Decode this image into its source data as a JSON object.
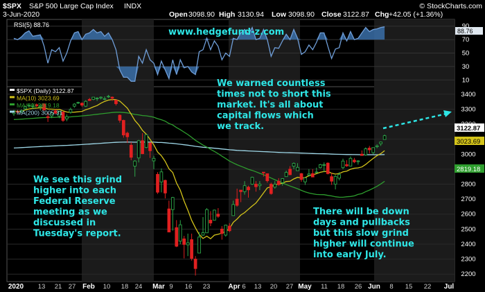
{
  "header": {
    "symbol": "$SPX",
    "name": "S&P 500 Large Cap Index",
    "exchange": "INDX",
    "date": "3-Jun-2020",
    "open_label": "Open",
    "open": "3098.90",
    "high_label": "High",
    "high": "3130.94",
    "low_label": "Low",
    "low": "3098.90",
    "close_label": "Close",
    "close": "3122.87",
    "chg_label": "Chg",
    "chg": "+42.05 (+1.36%)",
    "brand": "© StockCharts.com"
  },
  "watermark": "www.hedgefund-z.com",
  "annotations": [
    [
      "We warned countless",
      "times not to short this",
      "market. It's all about",
      "capital flows which",
      "we track."
    ],
    [
      "We see this grind",
      "higher into each",
      "Federal Reserve",
      "meeting as we",
      "discussed in",
      "Tuesday's report."
    ],
    [
      "There will be down",
      "days and pullbacks",
      "but this slow grind",
      "higher will continue",
      "into early July."
    ]
  ],
  "colors": {
    "background": "#000000",
    "up_candle": "#2ea84a",
    "down_candle": "#e02020",
    "ma10": "#d4c41a",
    "ma50": "#2e9e2e",
    "ma200": "#9fd8e8",
    "rsi_line": "#6f9ed8",
    "rsi_fill": "#3a6ea8",
    "annotation": "#2ee6e6"
  },
  "rsi_panel": {
    "label": "RSI(5) 88.76",
    "value_badge": "88.76",
    "ticks": [
      "90",
      "70",
      "50",
      "30",
      "10"
    ]
  },
  "price_panel": {
    "legend": [
      {
        "text": "$SPX (Daily) 3122.87",
        "color": "#ffffff"
      },
      {
        "text": "MA(10) 3023.69",
        "color": "#d4c41a"
      },
      {
        "text": "MA(50) 2819.18",
        "color": "#2e9e2e"
      },
      {
        "text": "MA(200) 3005.31",
        "color": "#9fd8e8"
      }
    ],
    "badges": {
      "close": "3122.87",
      "ma10": "3023.69",
      "ma50": "2819.18"
    },
    "y_ticks": [
      "3400",
      "3300",
      "3200",
      "3100",
      "3000",
      "2900",
      "2800",
      "2700",
      "2600",
      "2500",
      "2400",
      "2300",
      "2200"
    ]
  },
  "x_axis": {
    "labels": [
      {
        "text": "2020",
        "bold": true
      },
      {
        "text": "13"
      },
      {
        "text": "21"
      },
      {
        "text": "27"
      },
      {
        "text": "Feb",
        "bold": true
      },
      {
        "text": "10"
      },
      {
        "text": "18"
      },
      {
        "text": "24"
      },
      {
        "text": "Mar",
        "bold": true
      },
      {
        "text": "9"
      },
      {
        "text": "16"
      },
      {
        "text": "23"
      },
      {
        "text": "Apr",
        "bold": true
      },
      {
        "text": "6"
      },
      {
        "text": "13"
      },
      {
        "text": "20"
      },
      {
        "text": "27"
      },
      {
        "text": "May",
        "bold": true
      },
      {
        "text": "11"
      },
      {
        "text": "18"
      },
      {
        "text": "26"
      },
      {
        "text": "Jun",
        "bold": true
      },
      {
        "text": "8"
      },
      {
        "text": "15"
      },
      {
        "text": "22"
      },
      {
        "text": "Jul",
        "bold": true
      }
    ]
  },
  "chart_data": {
    "type": "candlestick",
    "title": "$SPX S&P 500 Large Cap Index INDX",
    "ylim": [
      2150,
      3450
    ],
    "rsi_ylim": [
      0,
      100
    ],
    "dates": [
      "Jan 13",
      "Jan 14",
      "Jan 15",
      "Jan 16",
      "Jan 17",
      "Jan 21",
      "Jan 22",
      "Jan 23",
      "Jan 24",
      "Jan 27",
      "Jan 28",
      "Jan 29",
      "Jan 30",
      "Jan 31",
      "Feb 3",
      "Feb 4",
      "Feb 5",
      "Feb 6",
      "Feb 7",
      "Feb 10",
      "Feb 11",
      "Feb 12",
      "Feb 13",
      "Feb 14",
      "Feb 18",
      "Feb 19",
      "Feb 20",
      "Feb 21",
      "Feb 24",
      "Feb 25",
      "Feb 26",
      "Feb 27",
      "Feb 28",
      "Mar 2",
      "Mar 3",
      "Mar 4",
      "Mar 5",
      "Mar 6",
      "Mar 9",
      "Mar 10",
      "Mar 11",
      "Mar 12",
      "Mar 13",
      "Mar 16",
      "Mar 17",
      "Mar 18",
      "Mar 19",
      "Mar 20",
      "Mar 23",
      "Mar 24",
      "Mar 25",
      "Mar 26",
      "Mar 27",
      "Mar 30",
      "Mar 31",
      "Apr 1",
      "Apr 2",
      "Apr 3",
      "Apr 6",
      "Apr 7",
      "Apr 8",
      "Apr 9",
      "Apr 13",
      "Apr 14",
      "Apr 15",
      "Apr 16",
      "Apr 17",
      "Apr 20",
      "Apr 21",
      "Apr 22",
      "Apr 23",
      "Apr 24",
      "Apr 27",
      "Apr 28",
      "Apr 29",
      "Apr 30",
      "May 1",
      "May 4",
      "May 5",
      "May 6",
      "May 7",
      "May 8",
      "May 11",
      "May 12",
      "May 13",
      "May 14",
      "May 15",
      "May 18",
      "May 19",
      "May 20",
      "May 21",
      "May 22",
      "May 26",
      "May 27",
      "May 28",
      "May 29",
      "Jun 1",
      "Jun 2",
      "Jun 3"
    ],
    "open": [
      3270,
      3285,
      3282,
      3302,
      3322,
      3320,
      3330,
      3318,
      3335,
      3250,
      3255,
      3290,
      3255,
      3280,
      3235,
      3280,
      3320,
      3345,
      3340,
      3320,
      3365,
      3365,
      3370,
      3375,
      3370,
      3385,
      3380,
      3360,
      3260,
      3225,
      3140,
      3060,
      2920,
      2975,
      3090,
      3045,
      3075,
      2955,
      2865,
      2815,
      2825,
      2635,
      2630,
      2510,
      2420,
      2435,
      2395,
      2430,
      2300,
      2340,
      2460,
      2475,
      2560,
      2560,
      2600,
      2500,
      2460,
      2520,
      2590,
      2700,
      2760,
      2750,
      2780,
      2800,
      2800,
      2790,
      2880,
      2870,
      2800,
      2780,
      2820,
      2810,
      2850,
      2900,
      2920,
      2890,
      2870,
      2815,
      2860,
      2870,
      2880,
      2910,
      2930,
      2940,
      2850,
      2800,
      2840,
      2910,
      2930,
      2920,
      2960,
      2950,
      3000,
      2995,
      3040,
      3010,
      3050,
      3070,
      3098
    ],
    "high": [
      3295,
      3295,
      3300,
      3320,
      3330,
      3340,
      3338,
      3335,
      3340,
      3275,
      3285,
      3300,
      3290,
      3285,
      3265,
      3310,
      3340,
      3350,
      3345,
      3360,
      3375,
      3380,
      3380,
      3385,
      3385,
      3395,
      3385,
      3365,
      3265,
      3230,
      3150,
      3080,
      2960,
      3095,
      3140,
      3130,
      3080,
      2990,
      2880,
      2905,
      2830,
      2690,
      2715,
      2560,
      2560,
      2455,
      2470,
      2470,
      2320,
      2480,
      2580,
      2640,
      2620,
      2630,
      2640,
      2520,
      2530,
      2540,
      2690,
      2770,
      2760,
      2820,
      2790,
      2850,
      2820,
      2820,
      2880,
      2870,
      2810,
      2820,
      2840,
      2840,
      2890,
      2920,
      2945,
      2940,
      2875,
      2845,
      2900,
      2900,
      2910,
      2935,
      2945,
      2945,
      2875,
      2860,
      2880,
      2970,
      2960,
      2985,
      2975,
      2960,
      3025,
      3045,
      3055,
      3045,
      3065,
      3085,
      3131
    ],
    "low": [
      3255,
      3270,
      3275,
      3295,
      3315,
      3300,
      3315,
      3290,
      3290,
      3215,
      3240,
      3270,
      3240,
      3215,
      3220,
      3270,
      3310,
      3335,
      3315,
      3315,
      3355,
      3360,
      3355,
      3365,
      3360,
      3375,
      3355,
      3325,
      3210,
      3110,
      3075,
      2960,
      2850,
      2945,
      3000,
      3040,
      2975,
      2900,
      2735,
      2745,
      2705,
      2480,
      2490,
      2380,
      2400,
      2305,
      2320,
      2290,
      2190,
      2340,
      2455,
      2480,
      2520,
      2560,
      2575,
      2430,
      2450,
      2480,
      2590,
      2650,
      2680,
      2730,
      2710,
      2795,
      2750,
      2760,
      2850,
      2810,
      2730,
      2770,
      2790,
      2790,
      2850,
      2860,
      2900,
      2890,
      2815,
      2795,
      2850,
      2850,
      2875,
      2905,
      2880,
      2865,
      2795,
      2765,
      2825,
      2900,
      2915,
      2925,
      2940,
      2930,
      2990,
      2990,
      3005,
      3000,
      3040,
      3055,
      3099
    ],
    "close": [
      3288,
      3283,
      3290,
      3317,
      3329,
      3321,
      3321,
      3325,
      3295,
      3244,
      3276,
      3273,
      3284,
      3225,
      3249,
      3298,
      3334,
      3345,
      3327,
      3352,
      3358,
      3380,
      3374,
      3380,
      3370,
      3386,
      3373,
      3337,
      3226,
      3128,
      3116,
      2979,
      2954,
      3090,
      3003,
      3130,
      3023,
      2972,
      2746,
      2882,
      2741,
      2481,
      2711,
      2386,
      2529,
      2398,
      2409,
      2305,
      2237,
      2447,
      2476,
      2630,
      2541,
      2627,
      2585,
      2471,
      2527,
      2489,
      2664,
      2659,
      2750,
      2790,
      2762,
      2846,
      2783,
      2800,
      2875,
      2823,
      2737,
      2799,
      2797,
      2837,
      2878,
      2863,
      2939,
      2912,
      2831,
      2842,
      2868,
      2848,
      2881,
      2930,
      2930,
      2870,
      2820,
      2852,
      2864,
      2954,
      2922,
      2972,
      2949,
      2955,
      2991,
      3036,
      3029,
      3044,
      3056,
      3081,
      3123
    ],
    "ma10_last": 3023.69,
    "ma50_last": 2819.18,
    "ma200_last": 3005.31,
    "rsi_last": 88.76,
    "rsi": [
      72,
      70,
      74,
      80,
      83,
      75,
      76,
      77,
      60,
      35,
      55,
      52,
      58,
      38,
      50,
      68,
      80,
      82,
      70,
      78,
      80,
      85,
      80,
      82,
      75,
      80,
      70,
      55,
      25,
      14,
      14,
      8,
      8,
      45,
      35,
      55,
      40,
      35,
      18,
      38,
      25,
      12,
      40,
      18,
      40,
      28,
      30,
      22,
      18,
      52,
      55,
      72,
      55,
      68,
      60,
      40,
      50,
      45,
      72,
      70,
      80,
      85,
      78,
      88,
      70,
      72,
      85,
      70,
      45,
      58,
      57,
      68,
      78,
      70,
      85,
      72,
      48,
      52,
      62,
      55,
      66,
      80,
      80,
      60,
      42,
      56,
      58,
      80,
      68,
      82,
      70,
      72,
      80,
      88,
      82,
      85,
      86,
      88,
      89
    ]
  }
}
